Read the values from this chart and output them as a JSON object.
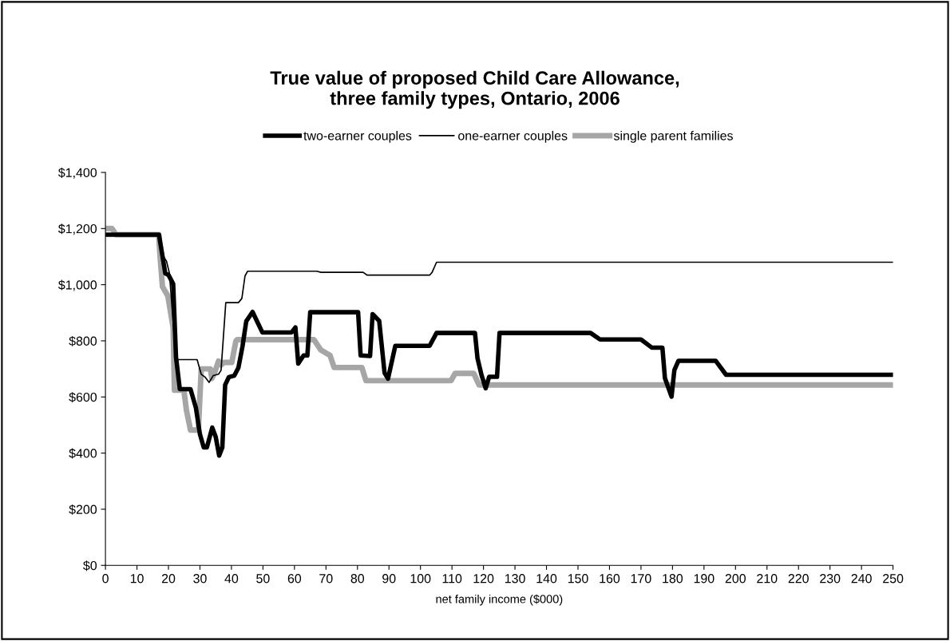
{
  "chart_data": {
    "type": "line",
    "title": "True value of proposed Child Care Allowance,\nthree family types, Ontario, 2006",
    "xlabel": "net family income ($000)",
    "xlim": [
      0,
      250
    ],
    "xticks": [
      0,
      10,
      20,
      30,
      40,
      50,
      60,
      70,
      80,
      90,
      100,
      110,
      120,
      130,
      140,
      150,
      160,
      170,
      180,
      190,
      200,
      210,
      220,
      230,
      240,
      250
    ],
    "ylim": [
      0,
      1400
    ],
    "yticks": [
      {
        "value": 0,
        "label": "$0"
      },
      {
        "value": 200,
        "label": "$200"
      },
      {
        "value": 400,
        "label": "$400"
      },
      {
        "value": 600,
        "label": "$600"
      },
      {
        "value": 800,
        "label": "$800"
      },
      {
        "value": 1000,
        "label": "$1,000"
      },
      {
        "value": 1200,
        "label": "$1,200"
      },
      {
        "value": 1400,
        "label": "$1,400"
      }
    ],
    "grid": false,
    "legend": "top",
    "marker": "none",
    "series": [
      {
        "name": "two-earner couples",
        "color": "#000000",
        "line_style": "solid",
        "x": [
          0,
          17,
          19,
          20,
          21.5,
          22.4,
          23.6,
          27,
          28.7,
          30,
          31.2,
          32.2,
          33.9,
          35,
          36.1,
          37.1,
          38,
          39.2,
          40.9,
          42.2,
          43.5,
          44.7,
          46.7,
          49.8,
          59.1,
          60.3,
          61.2,
          62.9,
          64.1,
          65,
          80.2,
          81,
          84,
          84.8,
          86.9,
          88.6,
          89.7,
          92,
          102.9,
          105.1,
          117.3,
          118.1,
          119.4,
          120.7,
          121.8,
          124.3,
          125.1,
          154,
          157,
          170,
          173.4,
          176.8,
          177.6,
          179.7,
          180.6,
          181.9,
          193.7,
          197,
          250
        ],
        "values": [
          1178,
          1178,
          1040,
          1035,
          1003,
          742,
          628,
          628,
          562,
          467,
          420,
          420,
          491,
          458,
          391,
          420,
          643,
          671,
          676,
          704,
          780,
          870,
          903,
          830,
          830,
          848,
          719,
          748,
          748,
          902,
          902,
          748,
          746,
          895,
          871,
          686,
          665,
          782,
          782,
          828,
          828,
          738,
          677,
          631,
          672,
          672,
          828,
          828,
          805,
          805,
          776,
          776,
          667,
          601,
          696,
          729,
          729,
          679,
          679
        ]
      },
      {
        "name": "one-earner couples",
        "color": "#000000",
        "line_style": "solid",
        "x": [
          0,
          17.1,
          18.6,
          19.4,
          20.3,
          22.4,
          29.1,
          30.4,
          31.6,
          32.9,
          34.2,
          35.9,
          36.7,
          38.2,
          42.2,
          43.3,
          44.3,
          45.1,
          67.1,
          68.4,
          81.8,
          83.1,
          102.9,
          103.7,
          105.1,
          250
        ],
        "values": [
          1178,
          1178,
          1098,
          1083,
          1041,
          733,
          733,
          681,
          671,
          652,
          676,
          681,
          695,
          936,
          936,
          951,
          1031,
          1048,
          1048,
          1044,
          1044,
          1034,
          1034,
          1044,
          1080,
          1080
        ]
      },
      {
        "name": "single parent families",
        "color": "#a6a6a6",
        "line_style": "solid",
        "x": [
          0,
          2.1,
          3.4,
          16.9,
          17.3,
          18.1,
          19.8,
          21.5,
          21.9,
          24.9,
          25.7,
          27,
          29.5,
          30.4,
          33.3,
          33.8,
          34.6,
          35.9,
          36.7,
          37.6,
          40.1,
          41.4,
          41.8,
          66.2,
          68.4,
          71.3,
          72.6,
          81.4,
          82.7,
          109.7,
          111,
          116.9,
          118.6,
          250
        ],
        "values": [
          1200,
          1200,
          1178,
          1178,
          1107,
          993,
          960,
          846,
          624,
          624,
          553,
          482,
          482,
          700,
          700,
          666,
          685,
          728,
          714,
          723,
          723,
          799,
          804,
          804,
          767,
          748,
          705,
          705,
          658,
          658,
          684,
          684,
          643,
          643
        ]
      }
    ]
  }
}
